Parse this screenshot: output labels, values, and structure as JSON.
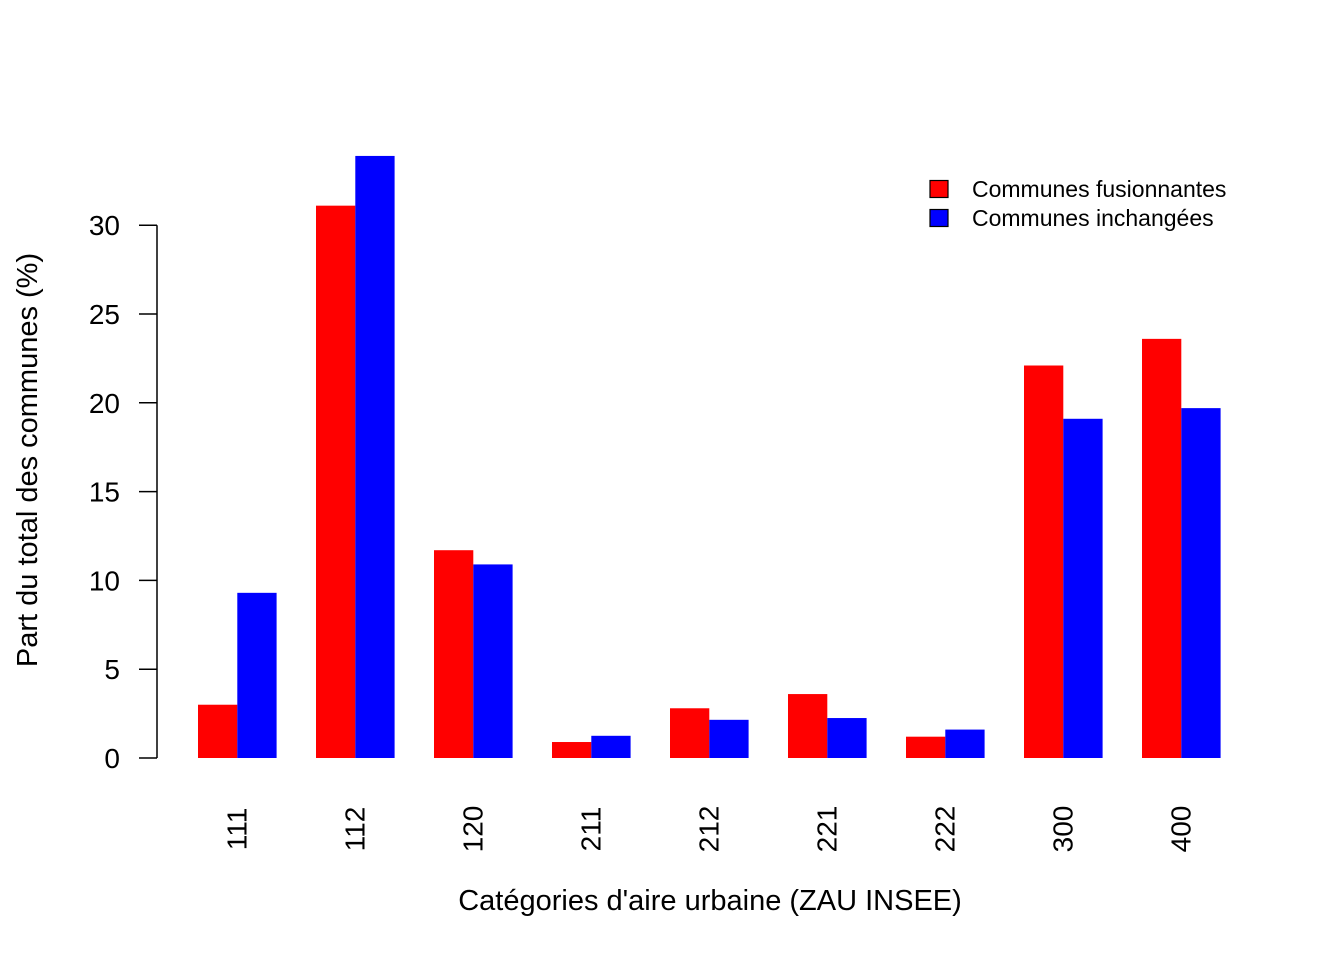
{
  "chart_data": {
    "type": "bar",
    "title": "",
    "xlabel": "Catégories d'aire urbaine (ZAU INSEE)",
    "ylabel": "Part du total des communes (%)",
    "categories": [
      "111",
      "112",
      "120",
      "211",
      "212",
      "221",
      "222",
      "300",
      "400"
    ],
    "series": [
      {
        "name": "Communes fusionnantes",
        "color": "#ff0000",
        "values": [
          3.0,
          31.1,
          11.7,
          0.9,
          2.8,
          3.6,
          1.2,
          22.1,
          23.6
        ]
      },
      {
        "name": "Communes inchangées",
        "color": "#0000ff",
        "values": [
          9.3,
          33.9,
          10.9,
          1.25,
          2.15,
          2.25,
          1.6,
          19.1,
          19.7
        ]
      }
    ],
    "ylim": [
      0,
      33.9
    ],
    "yticks": [
      0,
      5,
      10,
      15,
      20,
      25,
      30
    ],
    "grid": false,
    "legend_position": "top-right"
  }
}
